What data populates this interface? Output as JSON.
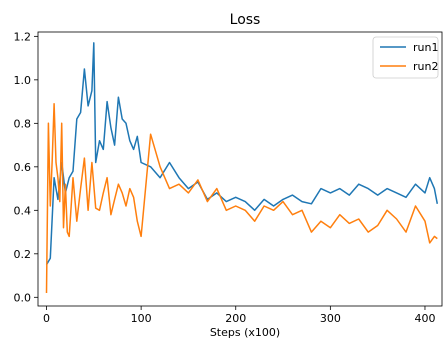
{
  "chart_data": {
    "type": "line",
    "title": "Loss",
    "xlabel": "Steps (x100)",
    "ylabel": "",
    "xlim": [
      -9,
      418
    ],
    "ylim": [
      -0.04,
      1.22
    ],
    "xticks": [
      0,
      100,
      200,
      300,
      400
    ],
    "yticks": [
      0.0,
      0.2,
      0.4,
      0.6,
      0.8,
      1.0,
      1.2
    ],
    "xtick_labels": [
      "0",
      "100",
      "200",
      "300",
      "400"
    ],
    "ytick_labels": [
      "0.0",
      "0.2",
      "0.4",
      "0.6",
      "0.8",
      "1.0",
      "1.2"
    ],
    "grid": false,
    "legend_position": "top-right",
    "series": [
      {
        "name": "run1",
        "color": "#1f77b4",
        "x": [
          0,
          4,
          8,
          12,
          16,
          20,
          24,
          28,
          32,
          36,
          40,
          44,
          48,
          50,
          52,
          56,
          60,
          64,
          68,
          72,
          76,
          80,
          84,
          88,
          92,
          96,
          100,
          110,
          120,
          130,
          140,
          150,
          160,
          170,
          180,
          190,
          200,
          210,
          220,
          230,
          240,
          250,
          260,
          270,
          280,
          290,
          300,
          310,
          320,
          330,
          340,
          350,
          360,
          370,
          380,
          390,
          400,
          405,
          410,
          413
        ],
        "values": [
          0.15,
          0.18,
          0.55,
          0.45,
          0.62,
          0.48,
          0.55,
          0.58,
          0.82,
          0.85,
          1.05,
          0.88,
          0.95,
          1.17,
          0.62,
          0.72,
          0.68,
          0.9,
          0.78,
          0.7,
          0.92,
          0.82,
          0.8,
          0.72,
          0.68,
          0.74,
          0.62,
          0.6,
          0.55,
          0.62,
          0.55,
          0.5,
          0.53,
          0.45,
          0.48,
          0.44,
          0.46,
          0.44,
          0.4,
          0.45,
          0.42,
          0.45,
          0.47,
          0.44,
          0.43,
          0.5,
          0.48,
          0.5,
          0.47,
          0.52,
          0.5,
          0.47,
          0.5,
          0.48,
          0.46,
          0.52,
          0.48,
          0.55,
          0.5,
          0.43
        ]
      },
      {
        "name": "run2",
        "color": "#ff7f0e",
        "x": [
          0,
          2,
          4,
          6,
          8,
          10,
          12,
          14,
          16,
          18,
          20,
          22,
          24,
          28,
          32,
          36,
          40,
          44,
          48,
          52,
          56,
          60,
          64,
          68,
          72,
          76,
          80,
          84,
          88,
          92,
          96,
          100,
          110,
          120,
          130,
          140,
          150,
          160,
          170,
          180,
          190,
          200,
          210,
          220,
          230,
          240,
          250,
          260,
          270,
          280,
          290,
          300,
          310,
          320,
          330,
          340,
          350,
          360,
          370,
          380,
          390,
          400,
          405,
          410,
          413
        ],
        "values": [
          0.02,
          0.8,
          0.42,
          0.63,
          0.89,
          0.62,
          0.55,
          0.44,
          0.8,
          0.32,
          0.52,
          0.3,
          0.28,
          0.55,
          0.35,
          0.5,
          0.64,
          0.4,
          0.62,
          0.41,
          0.4,
          0.48,
          0.55,
          0.38,
          0.45,
          0.52,
          0.48,
          0.42,
          0.5,
          0.46,
          0.35,
          0.28,
          0.75,
          0.6,
          0.5,
          0.52,
          0.48,
          0.54,
          0.44,
          0.5,
          0.4,
          0.42,
          0.4,
          0.35,
          0.42,
          0.4,
          0.44,
          0.38,
          0.4,
          0.3,
          0.35,
          0.32,
          0.38,
          0.34,
          0.36,
          0.3,
          0.33,
          0.4,
          0.36,
          0.3,
          0.42,
          0.35,
          0.25,
          0.28,
          0.27
        ]
      }
    ]
  }
}
